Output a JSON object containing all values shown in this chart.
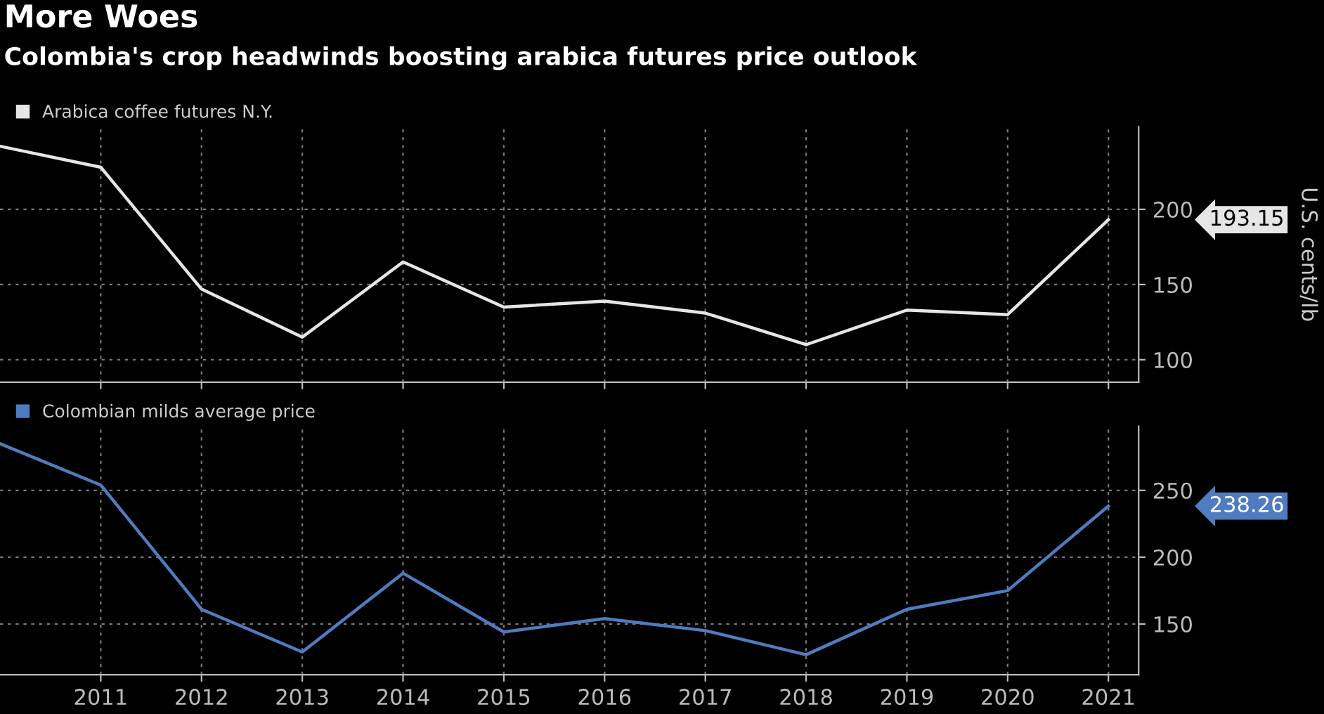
{
  "chart_data": [
    {
      "type": "line",
      "title": "More Woes",
      "subtitle": "Colombia's crop headwinds boosting arabica futures price outlook",
      "ylabel": "U.S. cents/lb",
      "x": [
        2010,
        2011,
        2012,
        2013,
        2014,
        2015,
        2016,
        2017,
        2018,
        2019,
        2020,
        2021
      ],
      "series": [
        {
          "name": "Arabica coffee futures N.Y.",
          "color": "#e6e6e6",
          "values": [
            242,
            228,
            147,
            115,
            165,
            135,
            139,
            131,
            110,
            133,
            130,
            193.15
          ]
        }
      ],
      "annotations": [
        "193.15"
      ],
      "xlim": [
        2010,
        2021.3
      ],
      "ylim": [
        85,
        255
      ],
      "yticks": [
        100,
        150,
        200
      ],
      "xticks": [
        2011,
        2012,
        2013,
        2014,
        2015,
        2016,
        2017,
        2018,
        2019,
        2020,
        2021
      ],
      "tick_labels": "y",
      "grid": true,
      "legend": "top left"
    },
    {
      "type": "line",
      "x": [
        2010,
        2011,
        2012,
        2013,
        2014,
        2015,
        2016,
        2017,
        2018,
        2019,
        2020,
        2021
      ],
      "series": [
        {
          "name": "Colombian milds average price",
          "color": "#4f7cc0",
          "values": [
            285,
            254,
            161,
            129,
            188,
            144,
            154,
            145,
            127,
            161,
            175,
            238.26
          ]
        }
      ],
      "annotations": [
        "238.26"
      ],
      "xlim": [
        2010,
        2021.3
      ],
      "ylim": [
        112,
        298
      ],
      "yticks": [
        150,
        200,
        250
      ],
      "xticks": [
        2011,
        2012,
        2013,
        2014,
        2015,
        2016,
        2017,
        2018,
        2019,
        2020,
        2021
      ],
      "grid": true,
      "legend": "top left"
    }
  ]
}
